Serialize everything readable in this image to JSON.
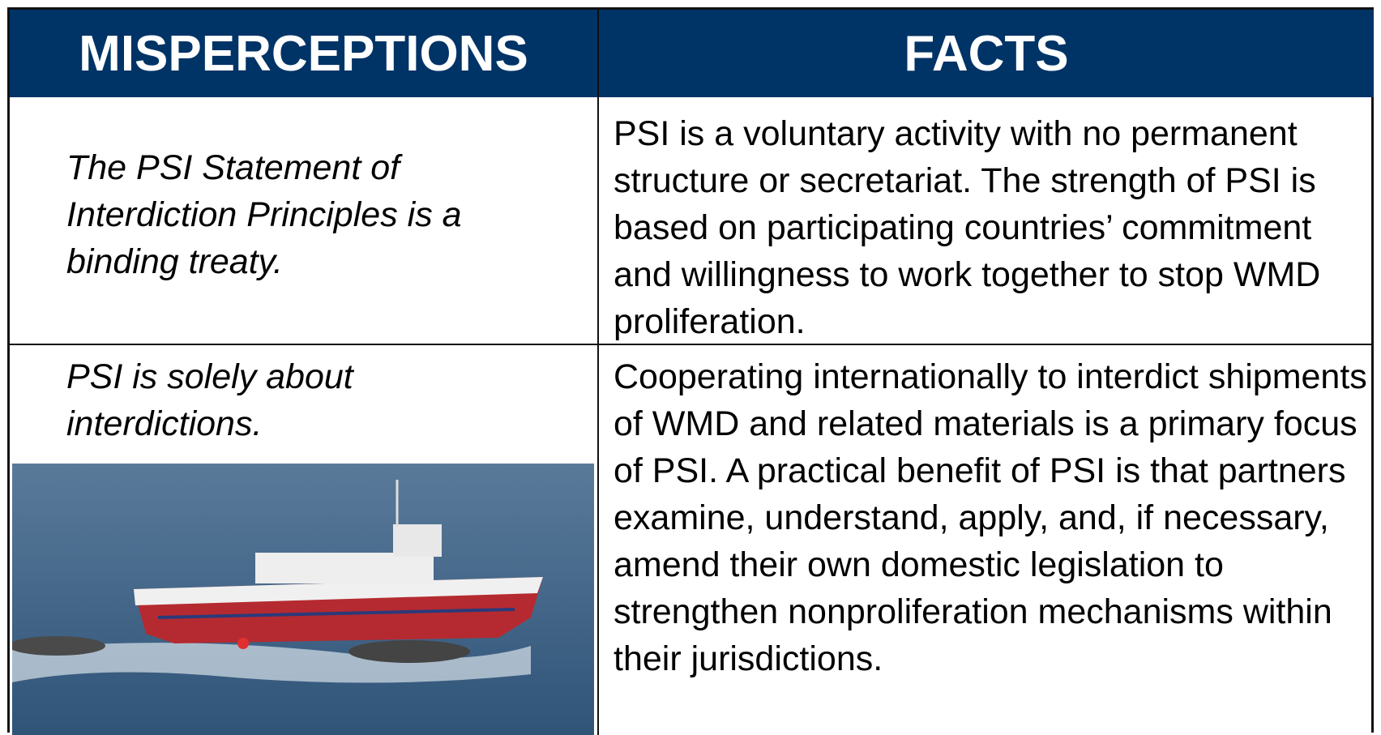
{
  "table": {
    "headers": [
      "MISPERCEPTIONS",
      "FACTS"
    ],
    "rows": [
      [
        "The PSI Statement of Interdiction Principles is a binding treaty.",
        "PSI is a voluntary activity with no permanent structure or secretariat. The strength of PSI is based on participating countries’ commitment and willingness to work together to stop WMD proliferation."
      ],
      [
        "PSI is solely about interdictions.",
        "Cooperating internationally to interdict shipments of WMD and related materials is a primary focus of PSI. A practical benefit of PSI is that partners examine, understand, apply, and, if necessary, amend their own domestic legislation to strengthen nonproliferation mechanisms within their jurisdictions."
      ]
    ]
  }
}
